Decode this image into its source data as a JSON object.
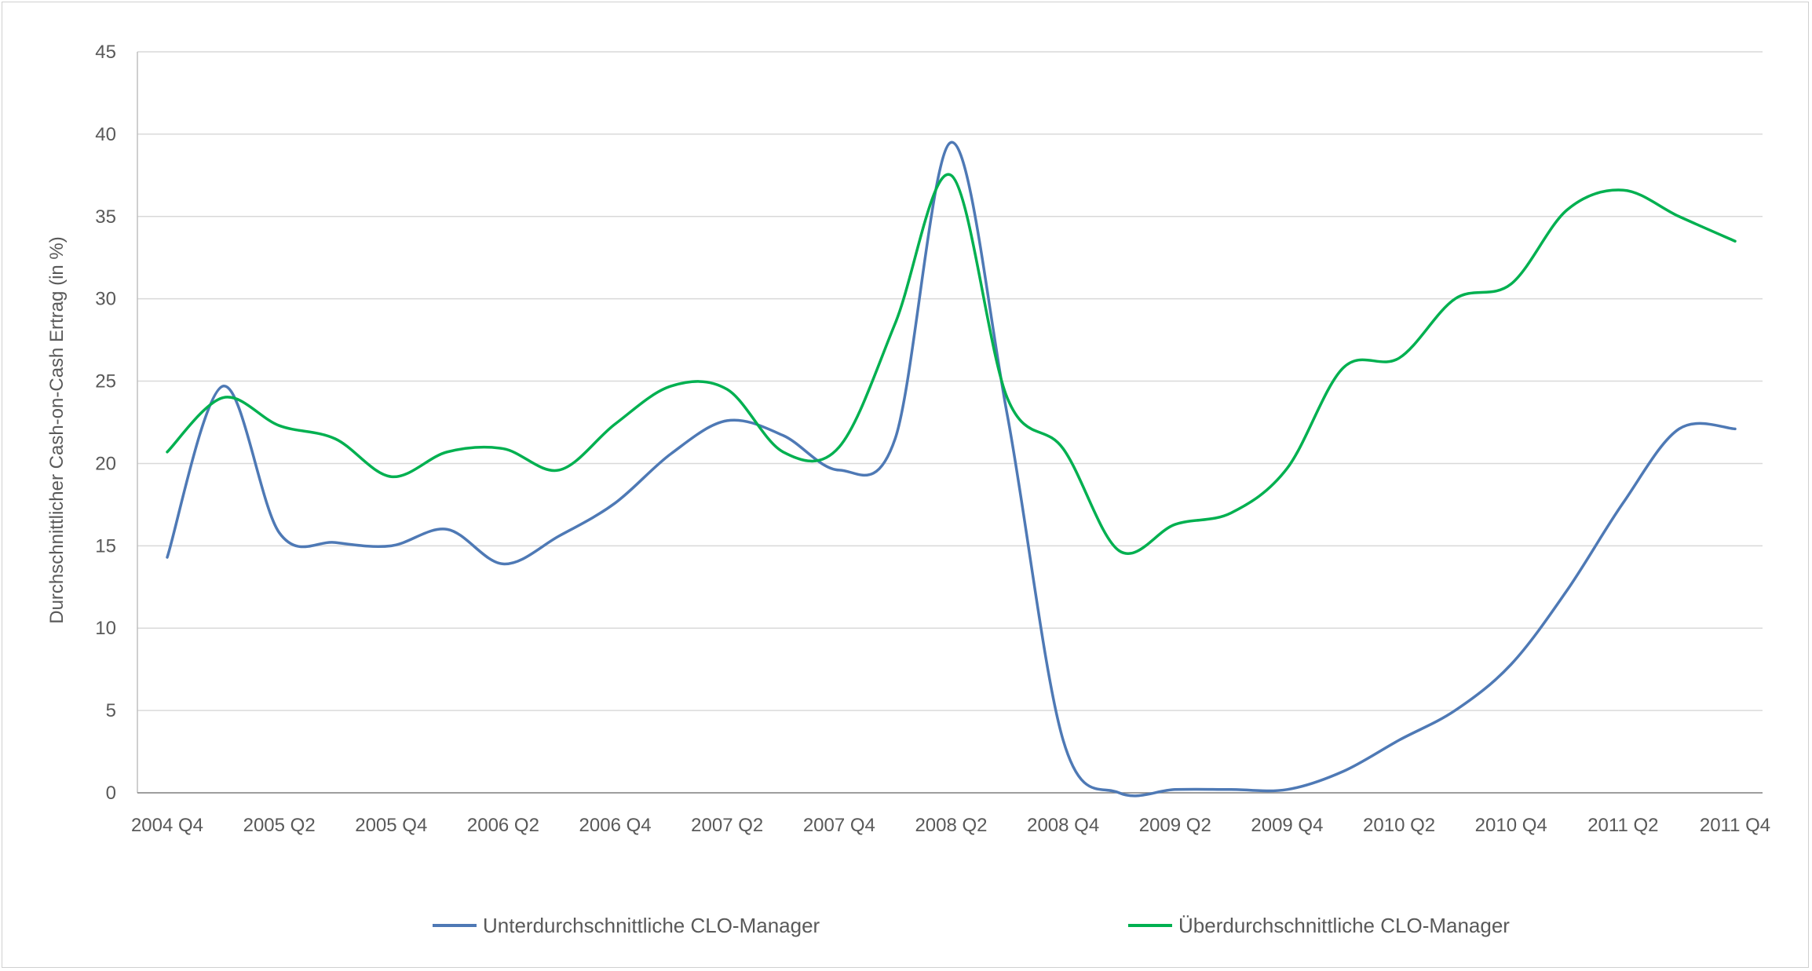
{
  "chart_data": {
    "type": "line",
    "title": "",
    "xlabel": "",
    "ylabel": "Durchschnittlicher Cash-on-Cash Ertrag (in %)",
    "ylim": [
      0,
      45
    ],
    "yticks": [
      "0",
      "5",
      "10",
      "15",
      "20",
      "25",
      "30",
      "35",
      "40",
      "45"
    ],
    "grid": true,
    "legend_position": "bottom",
    "categories": [
      "2004 Q4",
      "2005 Q1",
      "2005 Q2",
      "2005 Q3",
      "2005 Q4",
      "2006 Q1",
      "2006 Q2",
      "2006 Q3",
      "2006 Q4",
      "2007 Q1",
      "2007 Q2",
      "2007 Q3",
      "2007 Q4",
      "2008 Q1",
      "2008 Q2",
      "2008 Q3",
      "2008 Q4",
      "2009 Q1",
      "2009 Q2",
      "2009 Q3",
      "2009 Q4",
      "2010 Q1",
      "2010 Q2",
      "2010 Q3",
      "2010 Q4",
      "2011 Q1",
      "2011 Q2",
      "2011 Q3",
      "2011 Q4"
    ],
    "xtick_labels": [
      "2004 Q4",
      "2005 Q2",
      "2005 Q4",
      "2006 Q2",
      "2006 Q4",
      "2007 Q2",
      "2007 Q4",
      "2008 Q2",
      "2008 Q4",
      "2009 Q2",
      "2009 Q4",
      "2010 Q2",
      "2010 Q4",
      "2011 Q2",
      "2011 Q4"
    ],
    "series": [
      {
        "name": "Unterdurchschnittliche CLO-Manager",
        "color": "#4e79b5",
        "values": [
          14.3,
          24.7,
          15.8,
          15.2,
          15.0,
          16.0,
          13.9,
          15.6,
          17.6,
          20.6,
          22.6,
          21.7,
          19.6,
          21.5,
          39.5,
          23.0,
          3.2,
          0.0,
          0.2,
          0.2,
          0.2,
          1.3,
          3.2,
          5.0,
          7.8,
          12.3,
          17.6,
          22.1,
          22.1
        ]
      },
      {
        "name": "Überdurchschnittliche CLO-Manager",
        "color": "#00b050",
        "values": [
          20.7,
          24.0,
          22.3,
          21.5,
          19.2,
          20.7,
          20.9,
          19.6,
          22.4,
          24.7,
          24.5,
          20.7,
          21.0,
          28.5,
          37.5,
          24.0,
          20.9,
          14.7,
          16.3,
          17.0,
          19.7,
          25.8,
          26.4,
          30.0,
          30.9,
          35.4,
          36.6,
          35.0,
          33.5
        ]
      }
    ]
  }
}
